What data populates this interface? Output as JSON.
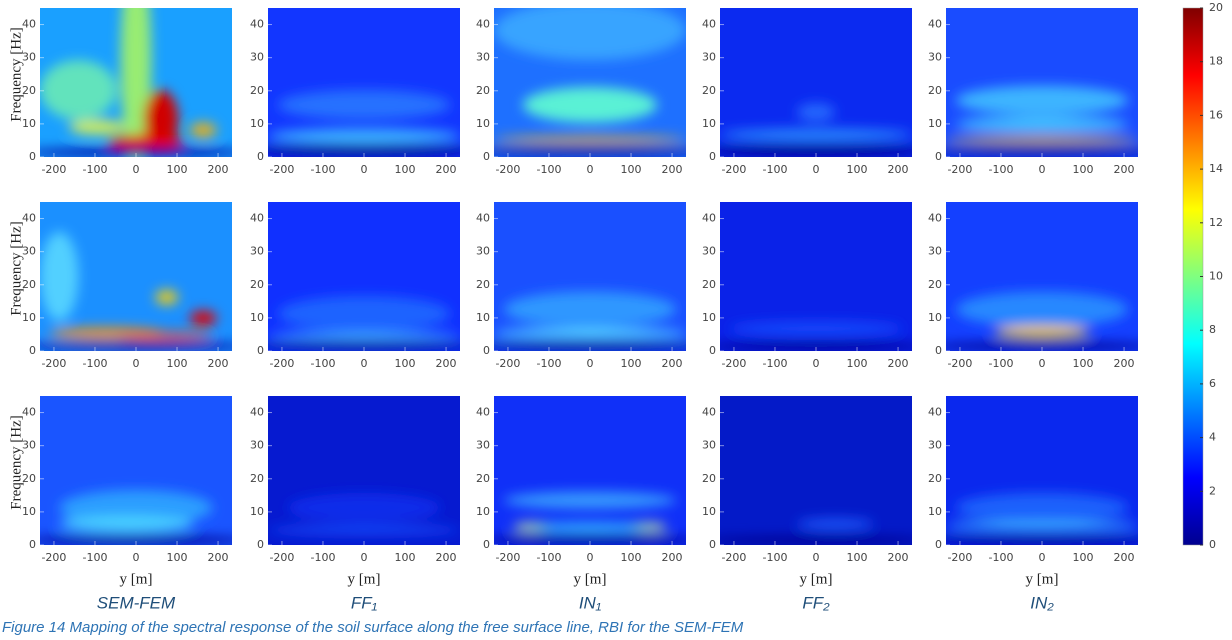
{
  "chart_data": {
    "type": "heatmap",
    "column_labels": [
      "SEM-FEM",
      "FF₁",
      "IN₁",
      "FF₂",
      "IN₂"
    ],
    "ylabel": "Frequency [Hz]",
    "xlabel": "y [m]",
    "xlim": [
      -234,
      234
    ],
    "xticks": [
      -200,
      -100,
      0,
      100,
      200
    ],
    "ylim": [
      0,
      45
    ],
    "yticks": [
      0,
      10,
      20,
      30,
      40
    ],
    "colorbar": {
      "lim": [
        0,
        20
      ],
      "ticks": [
        0,
        2,
        4,
        6,
        8,
        10,
        12,
        14,
        16,
        18,
        20
      ],
      "colormap": "jet"
    },
    "caption": "Figure 14 Mapping of the spectral response of the soil surface along the free surface line, RBI for the SEM-FEM"
  }
}
